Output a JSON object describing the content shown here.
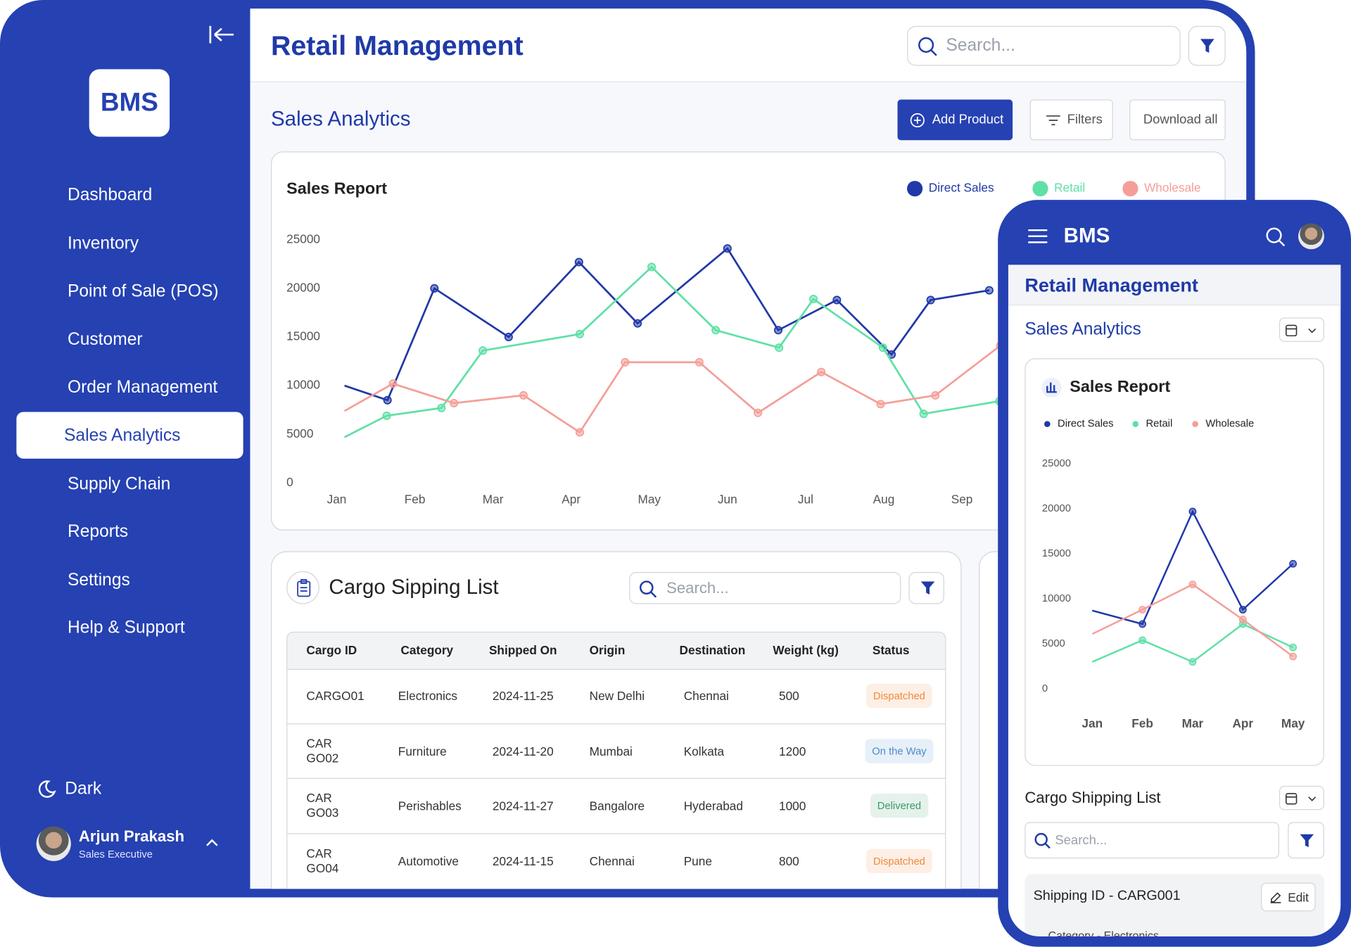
{
  "sidebar": {
    "logo": "BMS",
    "nav": [
      "Dashboard",
      "Inventory",
      "Point of Sale (POS)",
      "Customer",
      "Order Management",
      "Sales Analytics",
      "Supply Chain",
      "Reports",
      "Settings",
      "Help & Support"
    ],
    "theme_toggle": "Dark",
    "user": {
      "name": "Arjun Prakash",
      "role": "Sales Executive"
    }
  },
  "header": {
    "title": "Retail Management",
    "search_placeholder": "Search..."
  },
  "section": {
    "title": "Sales Analytics",
    "buttons": [
      "Add Product",
      "Filters",
      "Download all"
    ]
  },
  "sales_report": {
    "type": "line",
    "title": "Sales Report",
    "xlim": [
      0.9,
      11
    ],
    "xticks": [
      {
        "value": 1,
        "label": "Jan"
      },
      {
        "value": 2,
        "label": "Feb"
      },
      {
        "value": 3,
        "label": "Mar"
      },
      {
        "value": 4,
        "label": "Apr"
      },
      {
        "value": 5,
        "label": "May"
      },
      {
        "value": 6,
        "label": "Jun"
      },
      {
        "value": 7,
        "label": "Jul"
      },
      {
        "value": 8,
        "label": "Aug"
      },
      {
        "value": 9,
        "label": "Sep"
      }
    ],
    "ylim": [
      0,
      25000
    ],
    "yticks": [
      0,
      5000,
      10000,
      15000,
      20000,
      25000
    ],
    "series": [
      {
        "name": "Direct Sales",
        "color": "#2038a8",
        "x": [
          1.1,
          1.65,
          2.25,
          3.2,
          4.1,
          4.85,
          6,
          6.65,
          7.4,
          8.1,
          8.6,
          9.35
        ],
        "values": [
          10000,
          8500,
          20000,
          15000,
          22700,
          16400,
          24100,
          15700,
          18800,
          13200,
          18800,
          19800
        ]
      },
      {
        "name": "Retail",
        "color": "#5fe0a6",
        "x": [
          1.1,
          1.64,
          2.34,
          2.87,
          4.11,
          5.03,
          5.85,
          6.66,
          7.1,
          7.99,
          8.51,
          9.48
        ],
        "values": [
          4700,
          6900,
          7700,
          13600,
          15300,
          22200,
          15700,
          13900,
          18900,
          13900,
          7100,
          8400
        ]
      },
      {
        "name": "Wholesale",
        "color": "#f59e98",
        "x": [
          1.1,
          1.72,
          2.5,
          3.39,
          4.11,
          4.69,
          5.64,
          6.39,
          7.2,
          7.96,
          8.66,
          9.49
        ],
        "values": [
          7400,
          10200,
          8200,
          9000,
          5200,
          12400,
          12400,
          7200,
          11400,
          8100,
          9000,
          14100
        ]
      }
    ]
  },
  "cargo": {
    "title": "Cargo Sipping List",
    "search_placeholder": "Search...",
    "columns": [
      "Cargo ID",
      "Category",
      "Shipped On",
      "Origin",
      "Destination",
      "Weight (kg)",
      "Status"
    ],
    "rows": [
      [
        "CARGO01",
        "Electronics",
        "2024-11-25",
        "New Delhi",
        "Chennai",
        500,
        "Dispatched"
      ],
      [
        "CARGO02",
        "Furniture",
        "2024-11-20",
        "Mumbai",
        "Kolkata",
        1200,
        "On the Way"
      ],
      [
        "CARGO03",
        "Perishables",
        "2024-11-27",
        "Bangalore",
        "Hyderabad",
        1000,
        "Delivered"
      ],
      [
        "CARGO04",
        "Automotive",
        "2024-11-15",
        "Chennai",
        "Pune",
        800,
        "Dispatched"
      ]
    ],
    "status_colors": [
      "#f08a3c",
      "#4a8bc9",
      "#3b9a6b",
      "#f08a3c"
    ]
  },
  "mobile": {
    "logo": "BMS",
    "title": "Retail Management",
    "section": "Sales Analytics",
    "chart": {
      "type": "line",
      "title": "Sales Report",
      "categories": [
        "Jan",
        "Feb",
        "Mar",
        "Apr",
        "May"
      ],
      "ylim": [
        0,
        25000
      ],
      "yticks": [
        0,
        5000,
        10000,
        15000,
        20000,
        25000
      ],
      "series": [
        {
          "name": "Direct Sales",
          "color": "#2038a8",
          "values": [
            8700,
            7200,
            19700,
            8800,
            13900
          ]
        },
        {
          "name": "Retail",
          "color": "#5fe0a6",
          "values": [
            3000,
            5400,
            3000,
            7200,
            4600
          ]
        },
        {
          "name": "Wholesale",
          "color": "#f59e98",
          "values": [
            6100,
            8800,
            11600,
            7700,
            3600
          ]
        }
      ]
    },
    "cargo_title": "Cargo Shipping List",
    "search_placeholder": "Search...",
    "card": {
      "title": "Shipping ID - CARG001",
      "edit": "Edit",
      "category": "Category - Electronics"
    }
  }
}
